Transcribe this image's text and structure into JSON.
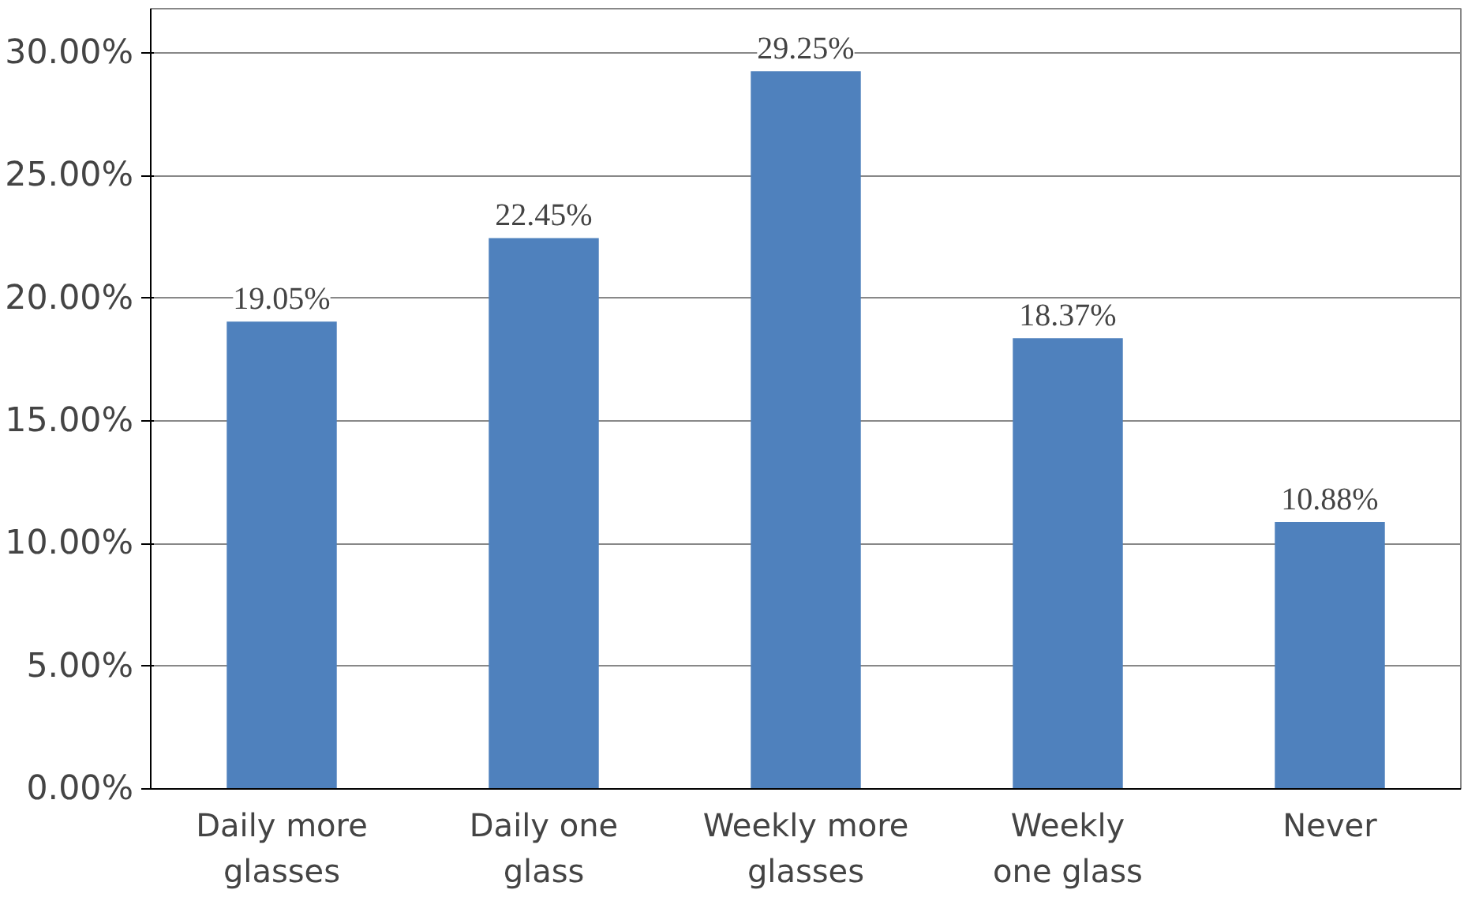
{
  "chart_data": {
    "type": "bar",
    "categories": [
      "Daily more\nglasses",
      "Daily one\nglass",
      "Weekly more\nglasses",
      "Weekly\none glass",
      "Never"
    ],
    "values": [
      19.05,
      22.45,
      29.25,
      18.37,
      10.88
    ],
    "value_labels": [
      "19.05%",
      "22.45%",
      "29.25%",
      "18.37%",
      "10.88%"
    ],
    "color": "#4f81bd",
    "ylim": [
      0,
      30
    ],
    "yticks": [
      {
        "value": 0,
        "label": "0.00%"
      },
      {
        "value": 5,
        "label": "5.00%"
      },
      {
        "value": 10,
        "label": "10.00%"
      },
      {
        "value": 15,
        "label": "15.00%"
      },
      {
        "value": 20,
        "label": "20.00%"
      },
      {
        "value": 25,
        "label": "25.00%"
      },
      {
        "value": 30,
        "label": "30.00%"
      }
    ],
    "grid": "y"
  }
}
